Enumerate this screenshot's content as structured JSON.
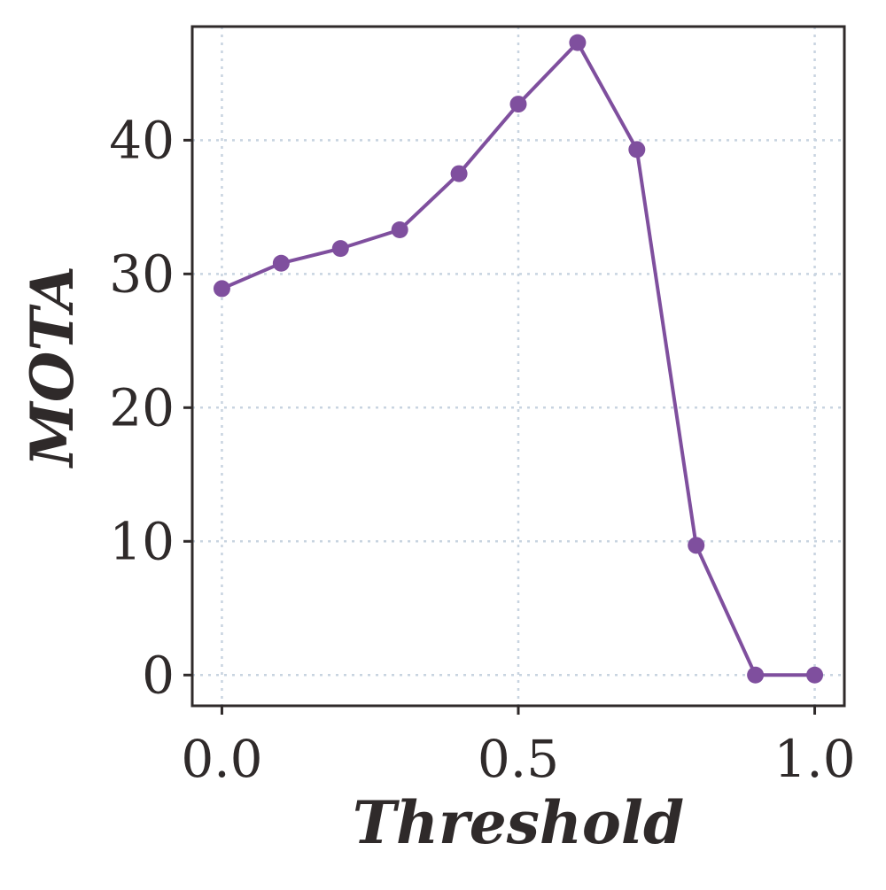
{
  "chart_data": {
    "type": "line",
    "title": "",
    "xlabel": "Threshold",
    "ylabel": "MOTA",
    "xlim": [
      -0.05,
      1.05
    ],
    "ylim": [
      -2.3,
      48.5
    ],
    "xticks": [
      0.0,
      0.5,
      1.0
    ],
    "xtick_labels": [
      "0.0",
      "0.5",
      "1.0"
    ],
    "yticks": [
      0,
      10,
      20,
      30,
      40
    ],
    "ytick_labels": [
      "0",
      "10",
      "20",
      "30",
      "40"
    ],
    "grid": true,
    "series": [
      {
        "name": "MOTA",
        "color": "#7f4f9e",
        "x": [
          0.0,
          0.1,
          0.2,
          0.3,
          0.4,
          0.5,
          0.6,
          0.7,
          0.8,
          0.9,
          1.0
        ],
        "values": [
          28.9,
          30.8,
          31.9,
          33.3,
          37.5,
          42.7,
          47.3,
          39.3,
          9.7,
          0.0,
          0.0
        ]
      }
    ]
  }
}
